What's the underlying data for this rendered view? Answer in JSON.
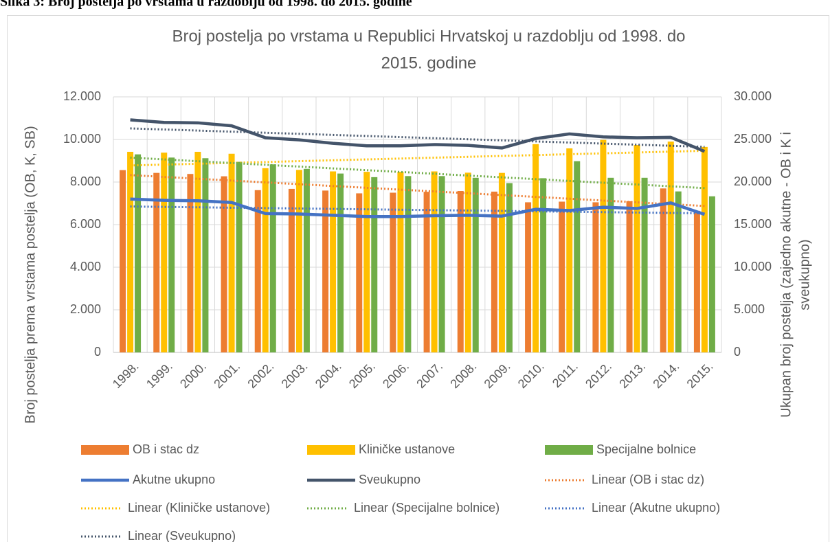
{
  "caption": "Slika 3: Broj postelja po vrstama u razdoblju od 1998. do 2015. godine",
  "chart_data": {
    "type": "bar",
    "title": [
      "Broj postelja po vrstama u Republici Hrvatskoj u razdoblju od 1998. do",
      "2015. godine"
    ],
    "y_label": "Broj postelja prema vrstama postelja (OB, K, SB)",
    "y2_label": [
      "Ukupan broj postelja (zajedno akutne - OB i K i",
      "sveukupno)"
    ],
    "categories": [
      "1998.",
      "1999.",
      "2000.",
      "2001.",
      "2002.",
      "2003.",
      "2004.",
      "2005.",
      "2006.",
      "2007.",
      "2008.",
      "2009.",
      "2010.",
      "2011.",
      "2012.",
      "2013.",
      "2014.",
      "2015."
    ],
    "series": [
      {
        "name": "OB i stac dz",
        "type": "bar",
        "color": "#ed7d31",
        "values": [
          8560,
          8430,
          8380,
          8270,
          7620,
          7680,
          7600,
          7470,
          7500,
          7540,
          7580,
          7550,
          7050,
          7080,
          7050,
          7100,
          7700,
          6650
        ]
      },
      {
        "name": "Kliničke ustanove",
        "type": "bar",
        "color": "#ffc000",
        "values": [
          9420,
          9380,
          9420,
          9330,
          8650,
          8570,
          8500,
          8480,
          8480,
          8500,
          8440,
          8430,
          9780,
          9580,
          9980,
          9740,
          9900,
          9650
        ]
      },
      {
        "name": "Specijalne bolnice",
        "type": "bar",
        "color": "#70ad47",
        "values": [
          9300,
          9150,
          9120,
          8950,
          8830,
          8620,
          8400,
          8230,
          8280,
          8280,
          8200,
          7950,
          8180,
          8980,
          8200,
          8200,
          7560,
          7330
        ]
      },
      {
        "name": "Akutne ukupno",
        "type": "line",
        "axis": "y2",
        "color": "#4472c4",
        "values": [
          18000,
          17850,
          17800,
          17600,
          16300,
          16250,
          16100,
          15950,
          15950,
          16050,
          16100,
          16000,
          16800,
          16650,
          17050,
          16900,
          17550,
          16200
        ]
      },
      {
        "name": "Sveukupno",
        "type": "line",
        "axis": "y2",
        "color": "#44546a",
        "values": [
          27300,
          27000,
          26950,
          26600,
          25200,
          24950,
          24550,
          24250,
          24250,
          24400,
          24300,
          24000,
          25100,
          25650,
          25300,
          25200,
          25250,
          23600
        ]
      }
    ],
    "trendlines": [
      {
        "name": "Linear (OB i stac dz)",
        "series": 0,
        "color": "#ed7d31"
      },
      {
        "name": "Linear (Kliničke ustanove)",
        "series": 1,
        "color": "#ffc000"
      },
      {
        "name": "Linear (Specijalne bolnice)",
        "series": 2,
        "color": "#70ad47"
      },
      {
        "name": "Linear (Akutne ukupno)",
        "series": 3,
        "color": "#4472c4"
      },
      {
        "name": "Linear (Sveukupno)",
        "series": 4,
        "color": "#44546a"
      }
    ],
    "ylim": [
      0,
      12000
    ],
    "yticks": [
      0,
      {
        "value": 2000,
        "label": "2.000"
      },
      {
        "value": 4000,
        "label": "4.000"
      },
      {
        "value": 6000,
        "label": "6.000"
      },
      {
        "value": 8000,
        "label": "8.000"
      },
      {
        "value": 10000,
        "label": "10.000"
      },
      {
        "value": 12000,
        "label": "12.000"
      }
    ],
    "y2lim": [
      0,
      30000
    ],
    "y2ticks": [
      0,
      {
        "value": 5000,
        "label": "5.000"
      },
      {
        "value": 10000,
        "label": "10.000"
      },
      {
        "value": 15000,
        "label": "15.000"
      },
      {
        "value": 20000,
        "label": "20.000"
      },
      {
        "value": 25000,
        "label": "25.000"
      },
      {
        "value": 30000,
        "label": "30.000"
      }
    ],
    "grid": true
  }
}
